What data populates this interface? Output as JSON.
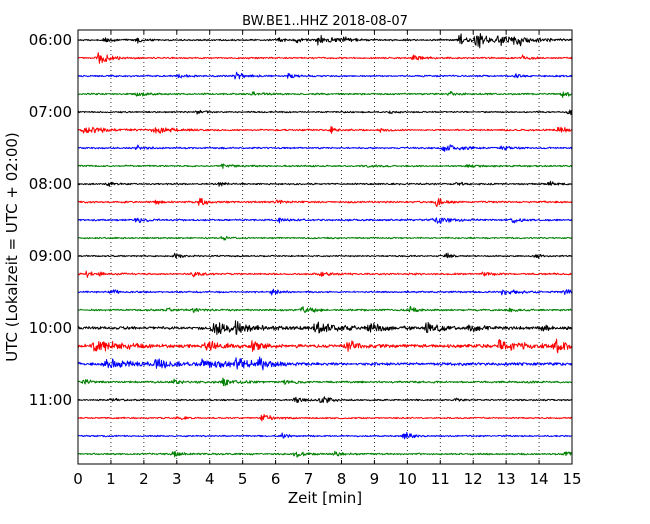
{
  "chart_data": {
    "type": "line",
    "title": "BW.BE1..HHZ 2018-08-07",
    "xlabel": "Zeit  [min]",
    "ylabel": "UTC (Lokalzeit = UTC + 02:00)",
    "xlim": [
      0,
      15
    ],
    "x_ticks": [
      0,
      1,
      2,
      3,
      4,
      5,
      6,
      7,
      8,
      9,
      10,
      11,
      12,
      13,
      14,
      15
    ],
    "x_tick_labels": [
      "0",
      "1",
      "2",
      "3",
      "4",
      "5",
      "6",
      "7",
      "8",
      "9",
      "10",
      "11",
      "12",
      "13",
      "14",
      "15"
    ],
    "vertical_grid": true,
    "grid_style": "dotted",
    "y_tick_labels": [
      {
        "row": 0,
        "label": "06:00"
      },
      {
        "row": 4,
        "label": "07:00"
      },
      {
        "row": 8,
        "label": "08:00"
      },
      {
        "row": 12,
        "label": "09:00"
      },
      {
        "row": 16,
        "label": "10:00"
      },
      {
        "row": 20,
        "label": "11:00"
      }
    ],
    "color_cycle": [
      "#000000",
      "#ff0000",
      "#0000ff",
      "#008000"
    ],
    "traces": [
      {
        "start": "06:00",
        "color": "#000000",
        "noise": 0.45,
        "events": [
          [
            0.8,
            1.6,
            0.25
          ],
          [
            1.8,
            1.5,
            0.25
          ],
          [
            6.1,
            1.2,
            0.2
          ],
          [
            6.6,
            1.2,
            0.2
          ],
          [
            7.3,
            2.4,
            0.4
          ],
          [
            8.1,
            1.6,
            0.2
          ],
          [
            11.6,
            3.0,
            0.4
          ],
          [
            12.1,
            3.5,
            0.4
          ],
          [
            12.8,
            3.2,
            0.5
          ],
          [
            13.2,
            2.0,
            0.6
          ]
        ]
      },
      {
        "start": "06:15",
        "color": "#ff0000",
        "noise": 0.45,
        "events": [
          [
            0.6,
            3.5,
            0.3
          ],
          [
            10.2,
            2.0,
            0.2
          ],
          [
            13.5,
            1.4,
            0.2
          ]
        ]
      },
      {
        "start": "06:30",
        "color": "#0000ff",
        "noise": 0.45,
        "events": [
          [
            3.1,
            1.2,
            0.2
          ],
          [
            4.8,
            1.8,
            0.3
          ],
          [
            6.4,
            1.3,
            0.2
          ],
          [
            13.3,
            1.2,
            0.2
          ]
        ]
      },
      {
        "start": "06:45",
        "color": "#008000",
        "noise": 0.45,
        "events": [
          [
            1.8,
            1.0,
            0.3
          ],
          [
            5.3,
            1.0,
            0.3
          ],
          [
            11.3,
            1.3,
            0.2
          ],
          [
            14.7,
            1.8,
            0.2
          ]
        ]
      },
      {
        "start": "07:00",
        "color": "#000000",
        "noise": 0.4,
        "events": [
          [
            3.6,
            1.2,
            0.15
          ],
          [
            9.5,
            1.4,
            0.15
          ],
          [
            14.9,
            1.8,
            0.15
          ]
        ]
      },
      {
        "start": "07:15",
        "color": "#ff0000",
        "noise": 0.45,
        "events": [
          [
            0.2,
            2.4,
            0.5
          ],
          [
            2.3,
            2.6,
            0.4
          ],
          [
            7.7,
            1.4,
            0.15
          ],
          [
            9.2,
            1.4,
            0.15
          ],
          [
            14.6,
            1.6,
            0.3
          ]
        ]
      },
      {
        "start": "07:30",
        "color": "#0000ff",
        "noise": 0.45,
        "events": [
          [
            1.8,
            1.2,
            0.2
          ],
          [
            11.1,
            2.4,
            0.4
          ],
          [
            12.9,
            1.2,
            0.2
          ]
        ]
      },
      {
        "start": "07:45",
        "color": "#008000",
        "noise": 0.45,
        "events": [
          [
            4.4,
            1.3,
            0.2
          ],
          [
            8.8,
            1.0,
            0.2
          ],
          [
            11.8,
            1.0,
            0.2
          ]
        ]
      },
      {
        "start": "08:00",
        "color": "#000000",
        "noise": 0.45,
        "events": [
          [
            0.9,
            1.0,
            0.2
          ],
          [
            4.3,
            1.2,
            0.2
          ],
          [
            11.5,
            1.2,
            0.2
          ],
          [
            14.3,
            1.5,
            0.2
          ]
        ]
      },
      {
        "start": "08:15",
        "color": "#ff0000",
        "noise": 0.5,
        "events": [
          [
            2.4,
            1.2,
            0.2
          ],
          [
            3.7,
            2.2,
            0.2
          ],
          [
            6.0,
            1.2,
            0.2
          ],
          [
            10.9,
            2.6,
            0.2
          ]
        ]
      },
      {
        "start": "08:30",
        "color": "#0000ff",
        "noise": 0.5,
        "events": [
          [
            1.8,
            1.8,
            0.2
          ],
          [
            6.1,
            1.2,
            0.2
          ],
          [
            10.8,
            2.6,
            0.4
          ],
          [
            13.2,
            1.4,
            0.2
          ]
        ]
      },
      {
        "start": "08:45",
        "color": "#008000",
        "noise": 0.4,
        "events": [
          [
            4.4,
            1.0,
            0.2
          ]
        ]
      },
      {
        "start": "09:00",
        "color": "#000000",
        "noise": 0.4,
        "events": [
          [
            2.9,
            1.4,
            0.2
          ],
          [
            11.2,
            1.3,
            0.2
          ],
          [
            13.9,
            1.0,
            0.2
          ]
        ]
      },
      {
        "start": "09:15",
        "color": "#ff0000",
        "noise": 0.5,
        "events": [
          [
            0.3,
            2.2,
            0.3
          ],
          [
            3.5,
            1.2,
            0.2
          ],
          [
            7.4,
            1.5,
            0.2
          ],
          [
            12.3,
            1.3,
            0.2
          ]
        ]
      },
      {
        "start": "09:30",
        "color": "#0000ff",
        "noise": 0.45,
        "events": [
          [
            1.0,
            1.2,
            0.2
          ],
          [
            5.9,
            1.4,
            0.2
          ],
          [
            12.9,
            1.8,
            0.4
          ],
          [
            14.8,
            1.2,
            0.2
          ]
        ]
      },
      {
        "start": "09:45",
        "color": "#008000",
        "noise": 0.5,
        "events": [
          [
            2.7,
            1.6,
            0.2
          ],
          [
            3.5,
            1.4,
            0.2
          ],
          [
            6.8,
            2.0,
            0.3
          ],
          [
            10.1,
            1.6,
            0.2
          ],
          [
            13.1,
            1.4,
            0.2
          ]
        ]
      },
      {
        "start": "10:00",
        "color": "#000000",
        "noise": 0.8,
        "events": [
          [
            4.1,
            3.2,
            0.7
          ],
          [
            4.8,
            2.4,
            0.4
          ],
          [
            7.2,
            3.0,
            0.6
          ],
          [
            8.8,
            2.2,
            0.5
          ],
          [
            10.6,
            3.0,
            0.4
          ],
          [
            11.9,
            2.0,
            0.4
          ],
          [
            14.1,
            1.4,
            0.2
          ]
        ]
      },
      {
        "start": "10:15",
        "color": "#ff0000",
        "noise": 0.9,
        "events": [
          [
            0.5,
            3.0,
            0.8
          ],
          [
            3.9,
            2.6,
            0.5
          ],
          [
            5.3,
            2.2,
            0.4
          ],
          [
            8.2,
            2.6,
            0.3
          ],
          [
            12.8,
            2.4,
            0.8
          ],
          [
            14.5,
            2.6,
            0.5
          ]
        ]
      },
      {
        "start": "10:30",
        "color": "#0000ff",
        "noise": 0.8,
        "events": [
          [
            0.8,
            2.4,
            1.0
          ],
          [
            2.4,
            2.6,
            0.3
          ],
          [
            3.7,
            2.4,
            0.8
          ],
          [
            4.8,
            3.0,
            0.4
          ],
          [
            5.5,
            2.6,
            0.3
          ]
        ]
      },
      {
        "start": "10:45",
        "color": "#008000",
        "noise": 0.55,
        "events": [
          [
            0.2,
            1.6,
            0.2
          ],
          [
            2.9,
            1.3,
            0.2
          ],
          [
            4.4,
            1.8,
            0.5
          ],
          [
            6.3,
            1.2,
            0.2
          ]
        ]
      },
      {
        "start": "11:00",
        "color": "#000000",
        "noise": 0.4,
        "events": [
          [
            1.0,
            1.0,
            0.2
          ],
          [
            6.6,
            1.5,
            0.2
          ],
          [
            7.4,
            2.4,
            0.3
          ],
          [
            11.5,
            1.0,
            0.2
          ]
        ]
      },
      {
        "start": "11:15",
        "color": "#ff0000",
        "noise": 0.4,
        "events": [
          [
            3.0,
            1.2,
            0.2
          ],
          [
            5.6,
            2.0,
            0.3
          ]
        ]
      },
      {
        "start": "11:30",
        "color": "#0000ff",
        "noise": 0.4,
        "events": [
          [
            6.2,
            1.2,
            0.2
          ],
          [
            9.9,
            2.4,
            0.2
          ]
        ]
      },
      {
        "start": "11:45",
        "color": "#008000",
        "noise": 0.45,
        "events": [
          [
            2.9,
            1.2,
            0.2
          ],
          [
            6.6,
            2.0,
            0.3
          ],
          [
            7.8,
            1.2,
            0.2
          ],
          [
            14.8,
            1.4,
            0.2
          ]
        ]
      }
    ]
  }
}
